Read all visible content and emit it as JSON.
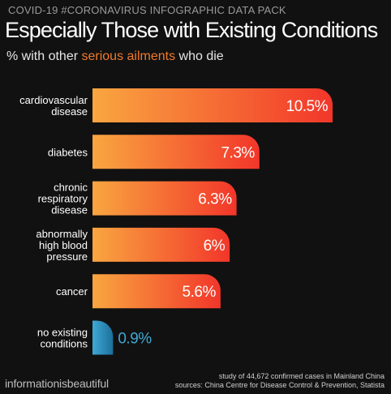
{
  "header": {
    "tag": "COVID-19 #CORONAVIRUS INFOGRAPHIC DATA PACK",
    "title": "Especially Those with Existing Conditions",
    "subtitle_before": "% with other ",
    "subtitle_highlight": "serious ailments",
    "subtitle_after": " who die"
  },
  "chart_data": {
    "type": "bar",
    "orientation": "horizontal",
    "categories": [
      [
        "cardiovascular",
        "disease"
      ],
      [
        "diabetes"
      ],
      [
        "chronic",
        "respiratory",
        "disease"
      ],
      [
        "abnormally",
        "high blood",
        "pressure"
      ],
      [
        "cancer"
      ],
      [
        "no existing",
        "conditions"
      ]
    ],
    "values": [
      10.5,
      7.3,
      6.3,
      6,
      5.6,
      0.9
    ],
    "value_labels": [
      "10.5%",
      "7.3%",
      "6.3%",
      "6%",
      "5.6%",
      "0.9%"
    ],
    "unit": "%",
    "xlim": [
      0,
      10.5
    ],
    "grid": false,
    "colors": {
      "bar_gradient_start": "#f9a640",
      "bar_gradient_end": "#f2362a",
      "baseline_bar_start": "#3fa9d6",
      "baseline_bar_end": "#1c6f9a",
      "baseline_label": "#3fa9d6",
      "bar_label": "#ffffff"
    }
  },
  "footer": {
    "brand": "informationisbeautiful",
    "note": "study of 44,672 confirmed cases in Mainland China",
    "sources": "sources: China Centre for Disease Control & Prevention, Statista"
  }
}
